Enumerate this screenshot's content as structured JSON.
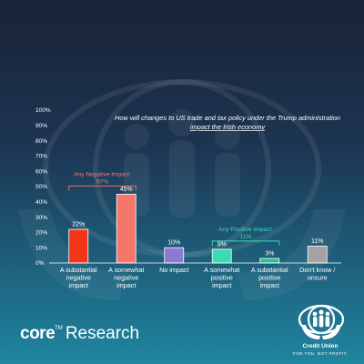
{
  "chart_data": {
    "type": "bar",
    "title_lines": [
      "How will changes to US trade and tax policy under the Trump administration",
      "impact the Irish economy"
    ],
    "categories": [
      [
        "A substantial",
        "negative",
        "impact"
      ],
      [
        "A somewhat",
        "negative",
        "impact"
      ],
      [
        "No impact"
      ],
      [
        "A somewhat",
        "positive",
        "impact"
      ],
      [
        "A substantial",
        "positive",
        "impact"
      ],
      [
        "Don't know /",
        "unsure"
      ]
    ],
    "values": [
      22,
      45,
      10,
      9,
      3,
      11
    ],
    "value_labels": [
      "22%",
      "45%",
      "10%",
      "9%",
      "3%",
      "11%"
    ],
    "bar_colors": [
      "#f2361a",
      "#f4776a",
      "#8a7ad2",
      "#3fd9b6",
      "#27c195",
      "#a3a3a3"
    ],
    "ylim": [
      0,
      100
    ],
    "yticks": [
      0,
      10,
      20,
      30,
      40,
      50,
      60,
      70,
      80,
      90,
      100
    ],
    "ytick_labels": [
      "0%",
      "10%",
      "20%",
      "30%",
      "40%",
      "50%",
      "60%",
      "70%",
      "80%",
      "90%",
      "100%"
    ],
    "annotations": [
      {
        "lines": [
          "Any Negative Impact:",
          "67%"
        ],
        "spans": [
          0,
          1
        ],
        "color": "#f4776a"
      },
      {
        "lines": [
          "Any Positive Impact:",
          "11%"
        ],
        "spans": [
          3,
          4
        ],
        "color": "#3fd9b6"
      }
    ],
    "grid": false
  },
  "brand": {
    "core": "core",
    "tm": "TM",
    "research": "Research"
  },
  "logo": {
    "name": "Credit Union",
    "tagline": "FOR YOU. NOT PROFIT."
  },
  "colors": {
    "axis": "#ffffff",
    "text": "#ffffff"
  }
}
